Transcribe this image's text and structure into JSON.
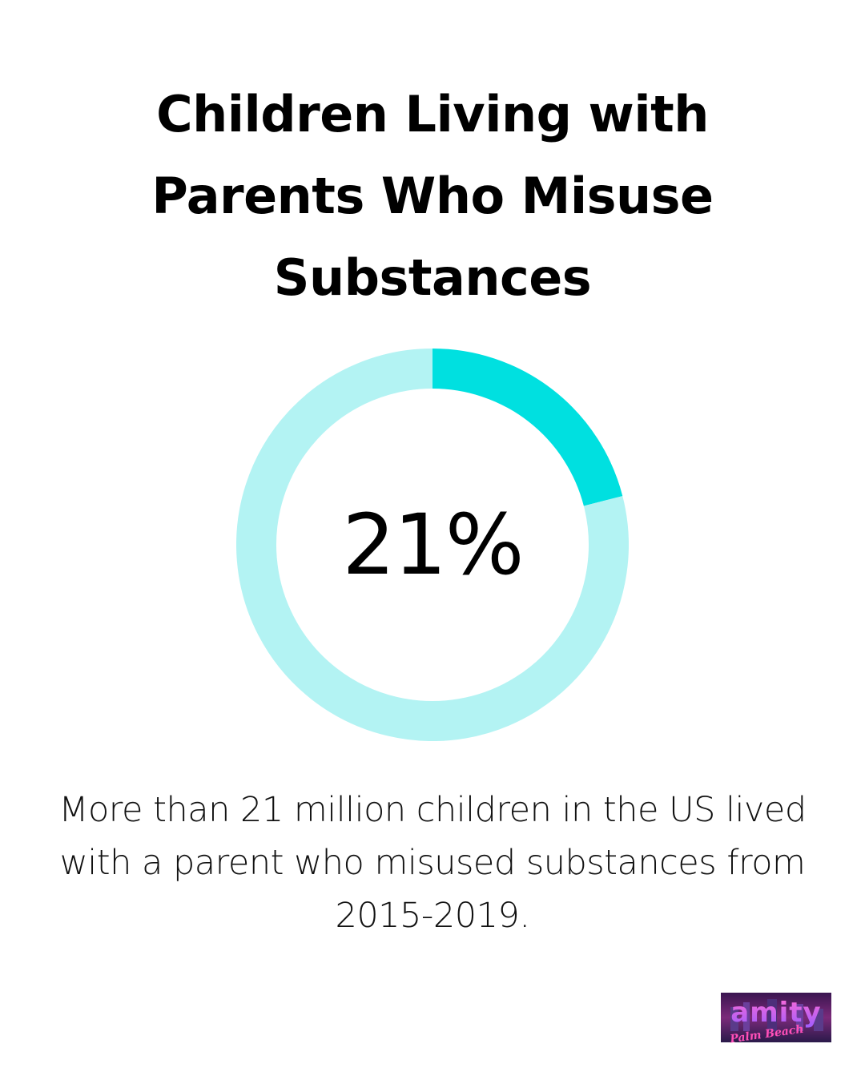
{
  "title_lines": [
    "Children Living with",
    "Parents Who Misuse",
    "Substances"
  ],
  "chart_data": {
    "type": "pie",
    "style": "donut",
    "value_percent": 21,
    "center_label": "21%",
    "slices": [
      {
        "value": 21,
        "color": "#00e0e0"
      },
      {
        "value": 79,
        "color": "#b3f3f3"
      }
    ],
    "title": ""
  },
  "caption": "More than 21 million children in the US lived with a parent who misused substances from 2015-2019.",
  "logo": {
    "text": "amity",
    "subtext": "Palm Beach"
  },
  "colors": {
    "accent": "#00e0e0",
    "track": "#b3f3f3",
    "text": "#000000"
  }
}
